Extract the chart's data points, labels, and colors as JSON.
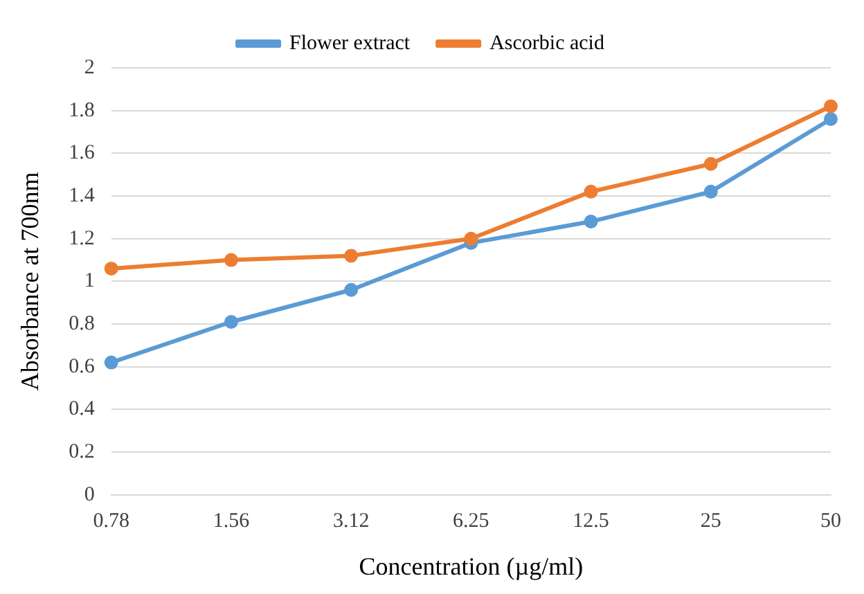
{
  "chart_data": {
    "type": "line",
    "xlabel": "Concentration (µg/ml)",
    "ylabel": "Absorbance at 700nm",
    "categories": [
      "0.78",
      "1.56",
      "3.12",
      "6.25",
      "12.5",
      "25",
      "50"
    ],
    "series": [
      {
        "name": "Flower extract",
        "color": "#5b9bd5",
        "values": [
          0.62,
          0.81,
          0.96,
          1.18,
          1.28,
          1.42,
          1.76
        ]
      },
      {
        "name": "Ascorbic acid",
        "color": "#ed7d31",
        "values": [
          1.06,
          1.1,
          1.12,
          1.2,
          1.42,
          1.55,
          1.82
        ]
      }
    ],
    "ylim": [
      0,
      2
    ],
    "yticks": [
      0,
      0.2,
      0.4,
      0.6,
      0.8,
      1,
      1.2,
      1.4,
      1.6,
      1.8,
      2
    ],
    "grid": "y",
    "legend": "top",
    "marker": "circle",
    "line_style": "solid"
  }
}
